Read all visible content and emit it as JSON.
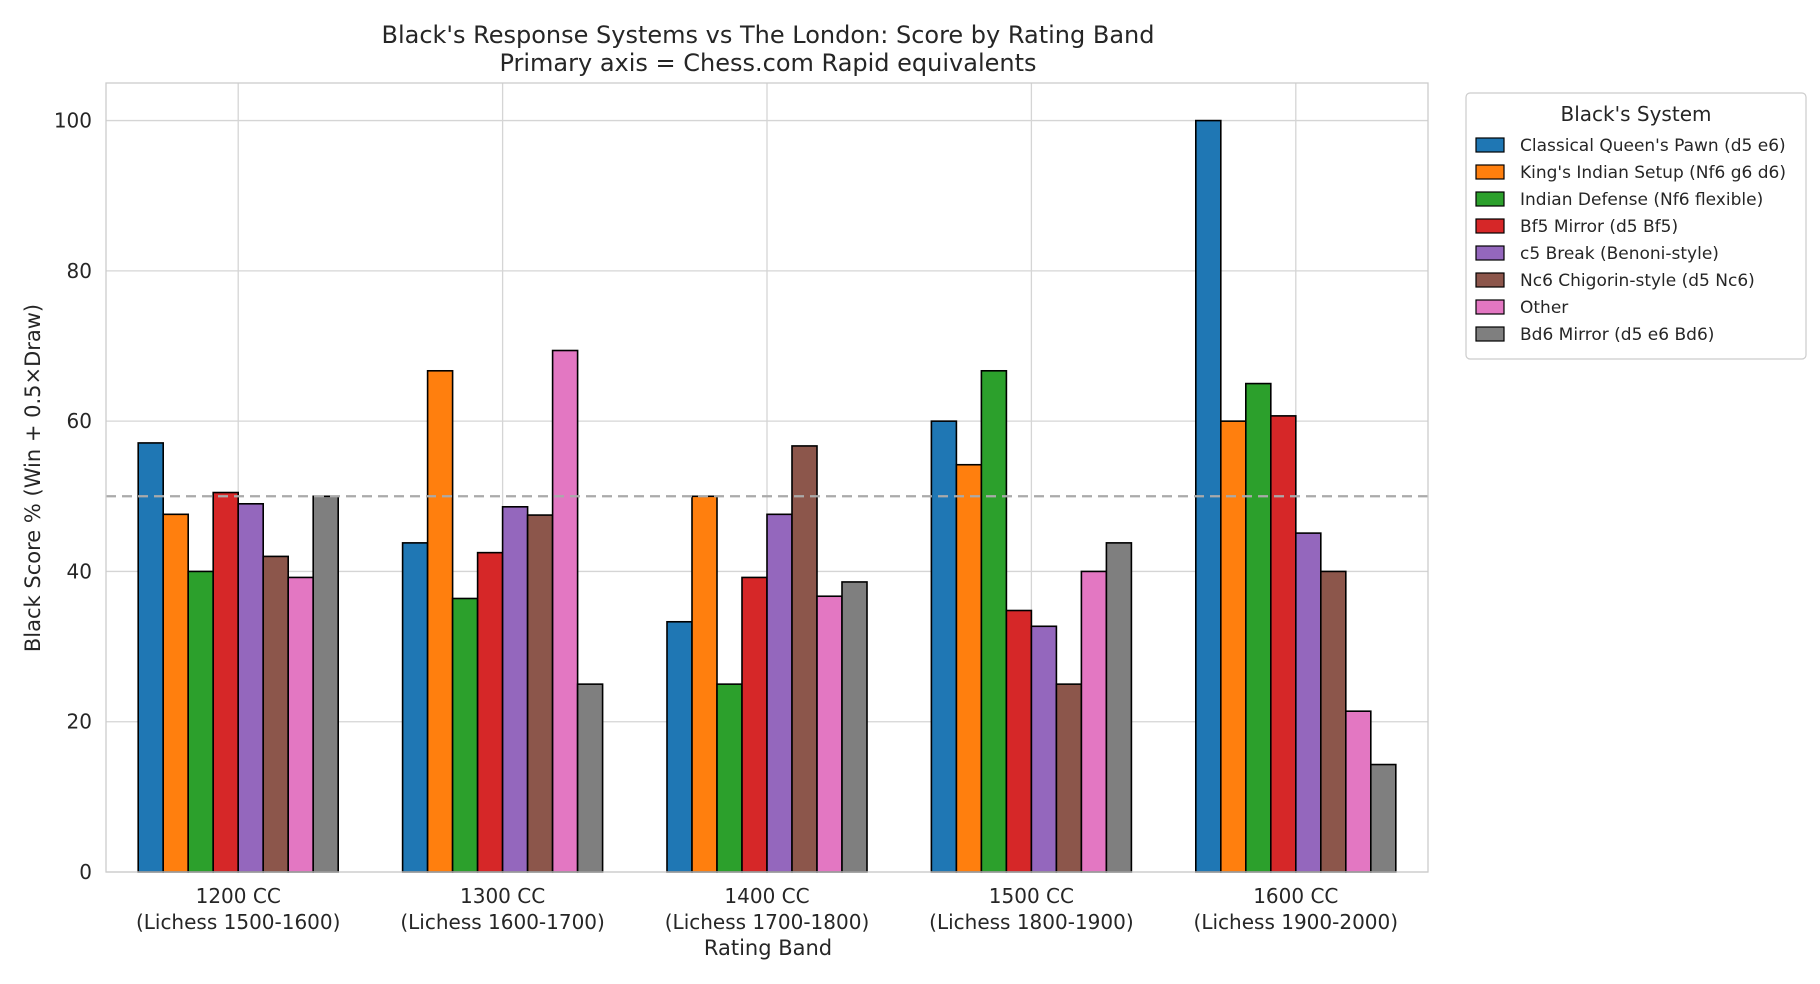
{
  "chart_data": {
    "type": "bar",
    "title": "Black's Response Systems vs The London: Score by Rating Band",
    "subtitle": "Primary axis = Chess.com Rapid equivalents",
    "xlabel": "Rating Band",
    "ylabel": "Black Score % (Win + 0.5×Draw)",
    "ylim": [
      0,
      105
    ],
    "yticks": [
      "0",
      "20",
      "40",
      "60",
      "80",
      "100"
    ],
    "grid": true,
    "reference_line": 50,
    "legend_title": "Black's System",
    "legend_position": "outside-top-right",
    "categories": [
      [
        "1200 CC",
        "(Lichess 1500-1600)"
      ],
      [
        "1300 CC",
        "(Lichess 1600-1700)"
      ],
      [
        "1400 CC",
        "(Lichess 1700-1800)"
      ],
      [
        "1500 CC",
        "(Lichess 1800-1900)"
      ],
      [
        "1600 CC",
        "(Lichess 1900-2000)"
      ]
    ],
    "series": [
      {
        "name": "Classical Queen's Pawn (d5 e6)",
        "color": "#1f77b4",
        "values": [
          57.1,
          43.8,
          33.3,
          60.0,
          100.0
        ]
      },
      {
        "name": "King's Indian Setup (Nf6 g6 d6)",
        "color": "#ff7f0e",
        "values": [
          47.6,
          66.7,
          50.0,
          54.2,
          60.0
        ]
      },
      {
        "name": "Indian Defense (Nf6 flexible)",
        "color": "#2ca02c",
        "values": [
          40.0,
          36.4,
          25.0,
          66.7,
          65.0
        ]
      },
      {
        "name": "Bf5 Mirror (d5 Bf5)",
        "color": "#d62728",
        "values": [
          50.5,
          42.5,
          39.2,
          34.8,
          60.7
        ]
      },
      {
        "name": "c5 Break (Benoni-style)",
        "color": "#9467bd",
        "values": [
          49.0,
          48.6,
          47.6,
          32.7,
          45.1
        ]
      },
      {
        "name": "Nc6 Chigorin-style (d5 Nc6)",
        "color": "#8c564b",
        "values": [
          42.0,
          47.5,
          56.7,
          25.0,
          40.0
        ]
      },
      {
        "name": "Other",
        "color": "#e377c2",
        "values": [
          39.2,
          69.4,
          36.7,
          40.0,
          21.4
        ]
      },
      {
        "name": "Bd6 Mirror (d5 e6 Bd6)",
        "color": "#7f7f7f",
        "values": [
          50.0,
          25.0,
          38.6,
          43.8,
          14.3
        ]
      }
    ]
  }
}
